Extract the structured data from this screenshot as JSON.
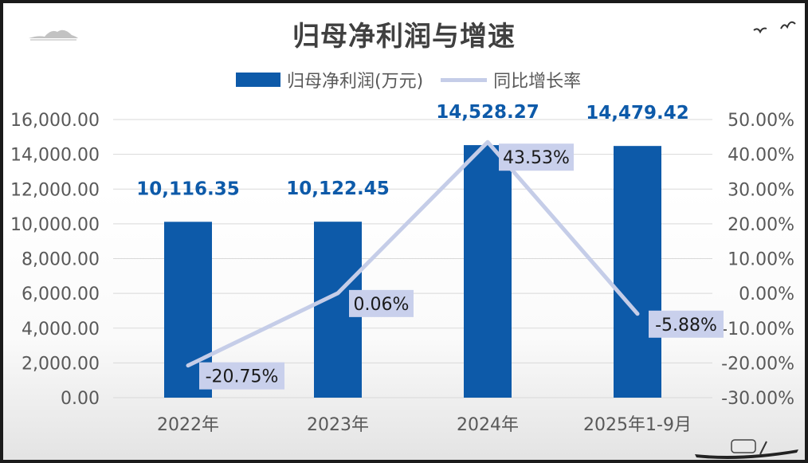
{
  "title": "归母净利润与增速",
  "legend": {
    "bar_label": "归母净利润(万元)",
    "line_label": "同比增长率"
  },
  "colors": {
    "bar": "#0d5aa9",
    "line": "#c5cde8",
    "label_bg": "#c9d0ec",
    "axis_text": "#595959",
    "grid": "#d9d9d9",
    "bar_label": "#0d5aa9"
  },
  "chart_data": {
    "type": "bar",
    "categories": [
      "2022年",
      "2023年",
      "2024年",
      "2025年1-9月"
    ],
    "series": [
      {
        "name": "归母净利润(万元)",
        "type": "bar",
        "axis": "left",
        "values": [
          10116.35,
          10122.45,
          14528.27,
          14479.42
        ],
        "labels": [
          "10,116.35",
          "10,122.45",
          "14,528.27",
          "14,479.42"
        ]
      },
      {
        "name": "同比增长率",
        "type": "line",
        "axis": "right",
        "values": [
          -20.75,
          0.06,
          43.53,
          -5.88
        ],
        "labels": [
          "-20.75%",
          "0.06%",
          "43.53%",
          "-5.88%"
        ]
      }
    ],
    "y_left": {
      "min": 0,
      "max": 16000,
      "ticks": [
        "0.00",
        "2,000.00",
        "4,000.00",
        "6,000.00",
        "8,000.00",
        "10,000.00",
        "12,000.00",
        "14,000.00",
        "16,000.00"
      ]
    },
    "y_right": {
      "min": -30,
      "max": 50,
      "ticks": [
        "-30.00%",
        "-20.00%",
        "-10.00%",
        "0.00%",
        "10.00%",
        "20.00%",
        "30.00%",
        "40.00%",
        "50.00%"
      ]
    },
    "grid": true,
    "legend_position": "top"
  }
}
